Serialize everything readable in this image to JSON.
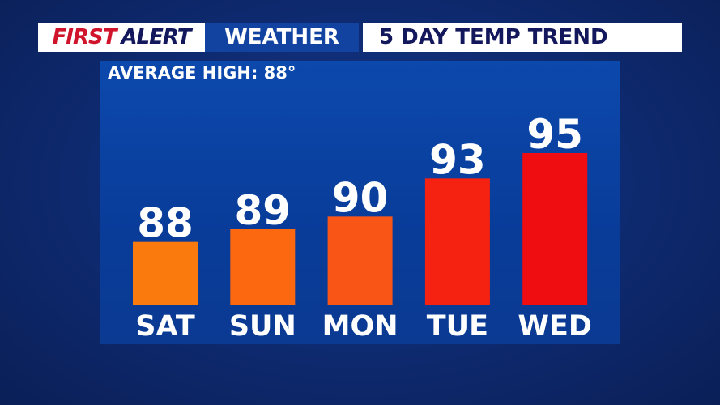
{
  "header": {
    "brand_first": "FIRST",
    "brand_alert": "ALERT",
    "brand_weather": "WEATHER",
    "title": "5 DAY TEMP TREND"
  },
  "average_high": "AVERAGE HIGH: 88°",
  "chart_data": {
    "type": "bar",
    "title": "5 DAY TEMP TREND",
    "categories": [
      "SAT",
      "SUN",
      "MON",
      "TUE",
      "WED"
    ],
    "values": [
      88,
      89,
      90,
      93,
      95
    ],
    "colors": [
      "#fb7a0e",
      "#fc6810",
      "#f95516",
      "#f52212",
      "#ef0d12"
    ],
    "ylim": [
      83,
      96
    ],
    "grid": false,
    "data_labels": true
  }
}
